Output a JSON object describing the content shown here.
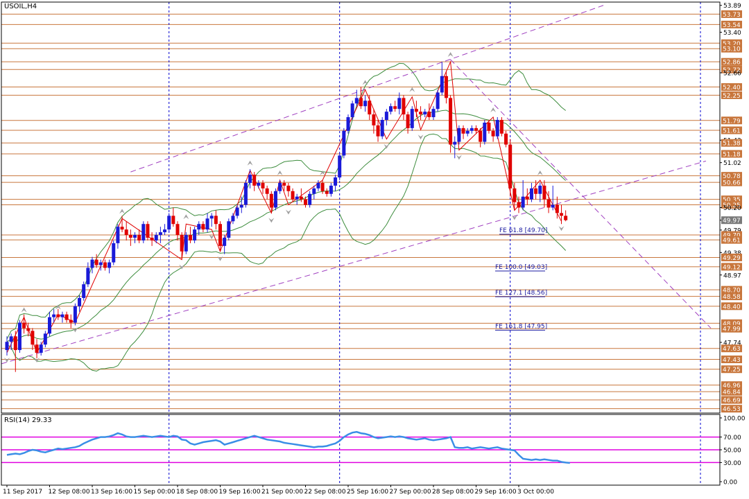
{
  "chart_data": {
    "type": "candlestick",
    "title": "USOIL,H4",
    "colors": {
      "bull": "#1a1ad8",
      "bear": "#e00000",
      "level_line": "#c8763c",
      "level_badge": "#c8763c",
      "bollinger": "#3c8c3c",
      "zigzag": "#e00000",
      "channel": "#a040c0",
      "vgrid": "#0000d0",
      "rsi_line": "#3a8ee6",
      "rsi_level": "#e000e0",
      "current_badge": "#7a7a7a"
    },
    "price_axis": {
      "range": [
        46.45,
        53.95
      ],
      "ticks": [
        "53.89",
        "53.73",
        "53.54",
        "53.40",
        "53.20",
        "53.10",
        "52.86",
        "52.72",
        "52.66",
        "52.40",
        "52.25",
        "51.79",
        "51.61",
        "51.43",
        "51.38",
        "51.18",
        "51.02",
        "50.78",
        "50.66",
        "50.35",
        "50.25",
        "50.20",
        "49.97",
        "49.79",
        "49.70",
        "49.61",
        "49.38",
        "49.29",
        "49.12",
        "48.97",
        "48.70",
        "48.58",
        "48.40",
        "48.09",
        "47.99",
        "47.74",
        "47.63",
        "47.43",
        "47.25",
        "46.96",
        "46.84",
        "46.69",
        "46.53"
      ]
    },
    "levels": [
      53.73,
      53.54,
      53.2,
      53.1,
      52.86,
      52.72,
      52.4,
      52.25,
      51.79,
      51.61,
      51.38,
      51.18,
      50.78,
      50.66,
      50.35,
      50.25,
      49.7,
      49.61,
      49.29,
      49.12,
      48.7,
      48.58,
      48.4,
      48.09,
      47.99,
      47.63,
      47.43,
      47.25,
      46.96,
      46.84,
      46.69,
      46.53
    ],
    "current_price": "49.97",
    "fib_labels": [
      {
        "text": "FE 61.8 [49.70]",
        "price": 49.7
      },
      {
        "text": "FE 100.0 [49.03]",
        "price": 49.03
      },
      {
        "text": "FE 127.1 [48.56]",
        "price": 48.56
      },
      {
        "text": "FE 161.8 [47.95]",
        "price": 47.95
      }
    ],
    "x_labels": [
      "11 Sep 2017",
      "12 Sep 08:00",
      "13 Sep 16:00",
      "15 Sep 00:00",
      "18 Sep 08:00",
      "19 Sep 16:00",
      "21 Sep 00:00",
      "22 Sep 08:00",
      "25 Sep 16:00",
      "27 Sep 00:00",
      "28 Sep 08:00",
      "29 Sep 16:00",
      "3 Oct 00:00"
    ],
    "candles": [
      [
        47.6,
        47.85,
        47.5,
        47.75
      ],
      [
        47.75,
        47.9,
        47.6,
        47.85
      ],
      [
        47.85,
        47.95,
        47.2,
        47.6
      ],
      [
        47.6,
        48.15,
        47.55,
        48.1
      ],
      [
        48.1,
        48.25,
        47.9,
        48.0
      ],
      [
        48.0,
        48.1,
        47.85,
        47.95
      ],
      [
        47.95,
        48.0,
        47.6,
        47.7
      ],
      [
        47.7,
        47.8,
        47.45,
        47.55
      ],
      [
        47.55,
        47.75,
        47.5,
        47.7
      ],
      [
        47.7,
        47.95,
        47.65,
        47.9
      ],
      [
        47.9,
        48.3,
        47.85,
        48.2
      ],
      [
        48.2,
        48.35,
        48.1,
        48.25
      ],
      [
        48.25,
        48.35,
        48.15,
        48.2
      ],
      [
        48.2,
        48.3,
        48.1,
        48.25
      ],
      [
        48.25,
        48.3,
        48.1,
        48.15
      ],
      [
        48.15,
        48.25,
        48.0,
        48.1
      ],
      [
        48.1,
        48.45,
        48.05,
        48.4
      ],
      [
        48.4,
        48.6,
        48.3,
        48.55
      ],
      [
        48.55,
        48.85,
        48.5,
        48.8
      ],
      [
        48.8,
        49.2,
        48.75,
        49.1
      ],
      [
        49.1,
        49.3,
        49.0,
        49.25
      ],
      [
        49.25,
        49.35,
        49.1,
        49.15
      ],
      [
        49.15,
        49.25,
        49.05,
        49.2
      ],
      [
        49.2,
        49.25,
        49.05,
        49.1
      ],
      [
        49.1,
        49.25,
        49.0,
        49.2
      ],
      [
        49.2,
        49.6,
        49.15,
        49.55
      ],
      [
        49.55,
        49.9,
        49.45,
        49.85
      ],
      [
        49.85,
        50.05,
        49.75,
        49.8
      ],
      [
        49.8,
        49.95,
        49.6,
        49.7
      ],
      [
        49.7,
        49.8,
        49.5,
        49.65
      ],
      [
        49.65,
        49.75,
        49.55,
        49.7
      ],
      [
        49.7,
        49.8,
        49.55,
        49.6
      ],
      [
        49.6,
        49.95,
        49.55,
        49.9
      ],
      [
        49.9,
        49.95,
        49.6,
        49.65
      ],
      [
        49.65,
        49.75,
        49.5,
        49.6
      ],
      [
        49.6,
        49.75,
        49.55,
        49.7
      ],
      [
        49.7,
        49.85,
        49.55,
        49.75
      ],
      [
        49.75,
        49.9,
        49.7,
        49.8
      ],
      [
        49.8,
        50.1,
        49.75,
        50.05
      ],
      [
        50.05,
        50.2,
        49.85,
        49.9
      ],
      [
        49.9,
        49.95,
        49.6,
        49.7
      ],
      [
        49.7,
        49.75,
        49.25,
        49.4
      ],
      [
        49.4,
        49.75,
        49.35,
        49.7
      ],
      [
        49.7,
        49.85,
        49.55,
        49.6
      ],
      [
        49.6,
        49.85,
        49.55,
        49.8
      ],
      [
        49.8,
        49.95,
        49.7,
        49.9
      ],
      [
        49.9,
        49.95,
        49.75,
        49.8
      ],
      [
        49.8,
        50.1,
        49.75,
        50.0
      ],
      [
        50.0,
        50.1,
        49.85,
        50.05
      ],
      [
        50.05,
        50.15,
        49.8,
        49.9
      ],
      [
        49.9,
        49.95,
        49.4,
        49.5
      ],
      [
        49.5,
        49.7,
        49.35,
        49.65
      ],
      [
        49.65,
        50.0,
        49.6,
        49.95
      ],
      [
        49.95,
        50.1,
        49.9,
        50.05
      ],
      [
        50.05,
        50.25,
        50.0,
        50.2
      ],
      [
        50.2,
        50.4,
        50.1,
        50.25
      ],
      [
        50.25,
        50.7,
        50.2,
        50.65
      ],
      [
        50.65,
        50.9,
        50.55,
        50.8
      ],
      [
        50.8,
        50.85,
        50.5,
        50.6
      ],
      [
        50.6,
        50.7,
        50.55,
        50.65
      ],
      [
        50.65,
        50.7,
        50.45,
        50.55
      ],
      [
        50.55,
        50.6,
        50.35,
        50.45
      ],
      [
        50.45,
        50.5,
        50.1,
        50.2
      ],
      [
        50.2,
        50.55,
        50.15,
        50.5
      ],
      [
        50.5,
        50.7,
        50.45,
        50.65
      ],
      [
        50.65,
        50.7,
        50.5,
        50.6
      ],
      [
        50.6,
        50.65,
        50.4,
        50.5
      ],
      [
        50.5,
        50.55,
        50.3,
        50.35
      ],
      [
        50.35,
        50.45,
        50.25,
        50.4
      ],
      [
        50.4,
        50.55,
        50.3,
        50.35
      ],
      [
        50.35,
        50.4,
        50.2,
        50.25
      ],
      [
        50.25,
        50.5,
        50.2,
        50.45
      ],
      [
        50.45,
        50.6,
        50.35,
        50.55
      ],
      [
        50.55,
        50.7,
        50.5,
        50.65
      ],
      [
        50.65,
        50.7,
        50.45,
        50.5
      ],
      [
        50.5,
        50.55,
        50.4,
        50.45
      ],
      [
        50.45,
        50.65,
        50.4,
        50.6
      ],
      [
        50.6,
        50.8,
        50.5,
        50.75
      ],
      [
        50.75,
        51.2,
        50.7,
        51.15
      ],
      [
        51.15,
        51.65,
        51.1,
        51.6
      ],
      [
        51.6,
        51.9,
        51.55,
        51.85
      ],
      [
        51.85,
        52.15,
        51.8,
        52.1
      ],
      [
        52.1,
        52.35,
        52.05,
        52.2
      ],
      [
        52.2,
        52.4,
        52.0,
        52.05
      ],
      [
        52.05,
        52.25,
        51.95,
        52.15
      ],
      [
        52.15,
        52.25,
        51.8,
        51.9
      ],
      [
        51.9,
        52.0,
        51.55,
        51.7
      ],
      [
        51.7,
        51.8,
        51.4,
        51.5
      ],
      [
        51.5,
        51.85,
        51.45,
        51.8
      ],
      [
        51.8,
        52.0,
        51.7,
        51.95
      ],
      [
        51.95,
        52.1,
        51.9,
        52.05
      ],
      [
        52.05,
        52.15,
        51.95,
        52.0
      ],
      [
        52.0,
        52.3,
        51.9,
        52.2
      ],
      [
        52.2,
        52.25,
        51.8,
        51.9
      ],
      [
        51.9,
        51.95,
        51.55,
        51.65
      ],
      [
        51.65,
        52.05,
        51.6,
        52.0
      ],
      [
        52.0,
        52.15,
        51.85,
        51.95
      ],
      [
        51.95,
        52.05,
        51.8,
        51.9
      ],
      [
        51.9,
        52.0,
        51.85,
        51.95
      ],
      [
        51.95,
        52.1,
        51.8,
        51.85
      ],
      [
        51.85,
        52.05,
        51.8,
        52.0
      ],
      [
        52.0,
        52.35,
        51.95,
        52.3
      ],
      [
        52.3,
        52.86,
        52.25,
        52.6
      ],
      [
        52.6,
        52.7,
        52.1,
        52.2
      ],
      [
        52.2,
        52.25,
        51.2,
        51.35
      ],
      [
        51.35,
        51.5,
        51.1,
        51.4
      ],
      [
        51.4,
        51.7,
        51.35,
        51.65
      ],
      [
        51.65,
        51.7,
        51.45,
        51.55
      ],
      [
        51.55,
        51.65,
        51.5,
        51.6
      ],
      [
        51.6,
        51.7,
        51.55,
        51.65
      ],
      [
        51.65,
        51.7,
        51.55,
        51.6
      ],
      [
        51.6,
        51.65,
        51.3,
        51.4
      ],
      [
        51.4,
        51.8,
        51.35,
        51.75
      ],
      [
        51.75,
        51.8,
        51.55,
        51.6
      ],
      [
        51.6,
        51.65,
        51.4,
        51.5
      ],
      [
        51.5,
        51.85,
        51.45,
        51.8
      ],
      [
        51.8,
        51.85,
        51.5,
        51.55
      ],
      [
        51.55,
        51.6,
        51.3,
        51.35
      ],
      [
        51.35,
        51.45,
        50.4,
        50.55
      ],
      [
        50.55,
        50.65,
        50.15,
        50.3
      ],
      [
        50.3,
        50.4,
        50.1,
        50.2
      ],
      [
        50.2,
        50.7,
        50.15,
        50.4
      ],
      [
        50.4,
        50.55,
        50.25,
        50.35
      ],
      [
        50.35,
        50.65,
        50.3,
        50.55
      ],
      [
        50.55,
        50.7,
        50.35,
        50.45
      ],
      [
        50.45,
        50.65,
        50.3,
        50.6
      ],
      [
        50.6,
        50.7,
        50.2,
        50.35
      ],
      [
        50.35,
        50.5,
        50.1,
        50.2
      ],
      [
        50.2,
        50.6,
        50.15,
        50.25
      ],
      [
        50.25,
        50.4,
        50.0,
        50.1
      ],
      [
        50.1,
        50.25,
        49.9,
        50.05
      ],
      [
        50.05,
        50.15,
        49.95,
        49.97
      ]
    ],
    "zigzag": [
      [
        0,
        47.55
      ],
      [
        4,
        48.2
      ],
      [
        7,
        47.55
      ],
      [
        12,
        48.25
      ],
      [
        16,
        48.1
      ],
      [
        27,
        50.0
      ],
      [
        41,
        49.25
      ],
      [
        42,
        49.9
      ],
      [
        48,
        49.8
      ],
      [
        50,
        49.4
      ],
      [
        57,
        50.88
      ],
      [
        62,
        50.1
      ],
      [
        64,
        50.7
      ],
      [
        66,
        50.25
      ],
      [
        74,
        50.7
      ],
      [
        84,
        52.35
      ],
      [
        89,
        51.45
      ],
      [
        95,
        52.22
      ],
      [
        97,
        51.62
      ],
      [
        104,
        52.86
      ],
      [
        106,
        51.25
      ],
      [
        114,
        51.85
      ],
      [
        119,
        50.15
      ],
      [
        125,
        50.7
      ],
      [
        130,
        49.95
      ]
    ],
    "rsi": {
      "label": "RSI(14) 29.33",
      "range": [
        0,
        100
      ],
      "ticks": [
        "100.00",
        "70.00",
        "50.00",
        "30.00",
        "0.00"
      ],
      "levels": [
        70,
        50,
        30
      ],
      "values": [
        42,
        43,
        44,
        43,
        45,
        48,
        50,
        49,
        47,
        46,
        48,
        50,
        52,
        51,
        52,
        53,
        54,
        56,
        60,
        63,
        66,
        68,
        70,
        70,
        71,
        73,
        76,
        74,
        71,
        70,
        70,
        71,
        72,
        71,
        70,
        71,
        72,
        71,
        70,
        72,
        71,
        66,
        65,
        60,
        58,
        60,
        62,
        63,
        64,
        65,
        63,
        58,
        60,
        62,
        64,
        66,
        68,
        70,
        72,
        70,
        68,
        66,
        65,
        64,
        63,
        61,
        60,
        59,
        58,
        57,
        56,
        55,
        54,
        55,
        55,
        56,
        58,
        60,
        64,
        70,
        74,
        77,
        78,
        76,
        75,
        73,
        70,
        68,
        69,
        70,
        71,
        70,
        71,
        70,
        68,
        67,
        66,
        67,
        68,
        66,
        65,
        66,
        67,
        68,
        70,
        54,
        53,
        53,
        54,
        52,
        53,
        54,
        53,
        52,
        53,
        54,
        52,
        51,
        50,
        49,
        42,
        36,
        35,
        34,
        35,
        34,
        35,
        34,
        33,
        33,
        31,
        30,
        29.33
      ]
    }
  }
}
